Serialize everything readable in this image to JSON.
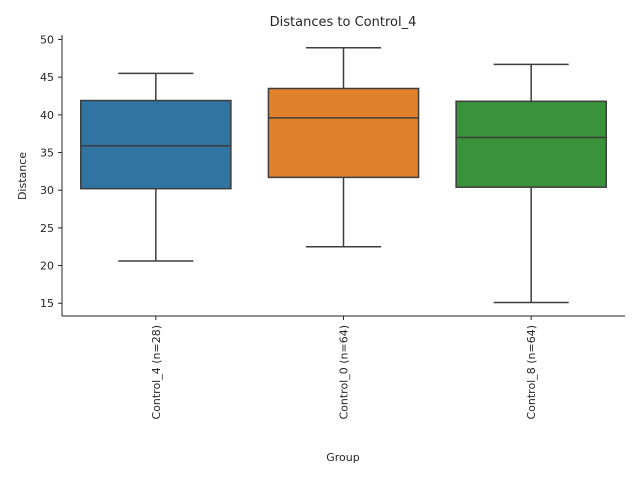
{
  "chart_data": {
    "type": "box",
    "title": "Distances to Control_4",
    "xlabel": "Group",
    "ylabel": "Distance",
    "ylim": [
      13.3,
      50.6
    ],
    "yticks": [
      15,
      20,
      25,
      30,
      35,
      40,
      45,
      50
    ],
    "categories": [
      "Control_4 (n=28)",
      "Control_0 (n=64)",
      "Control_8 (n=64)"
    ],
    "boxes": [
      {
        "whisker_low": 20.6,
        "q1": 30.2,
        "median": 35.9,
        "q3": 41.9,
        "whisker_high": 45.5,
        "color": "#3274a1"
      },
      {
        "whisker_low": 22.5,
        "q1": 31.7,
        "median": 39.6,
        "q3": 43.5,
        "whisker_high": 48.9,
        "color": "#e1812c"
      },
      {
        "whisker_low": 15.1,
        "q1": 30.4,
        "median": 37.0,
        "q3": 41.8,
        "whisker_high": 46.7,
        "color": "#3a923a"
      }
    ],
    "grid": false
  }
}
